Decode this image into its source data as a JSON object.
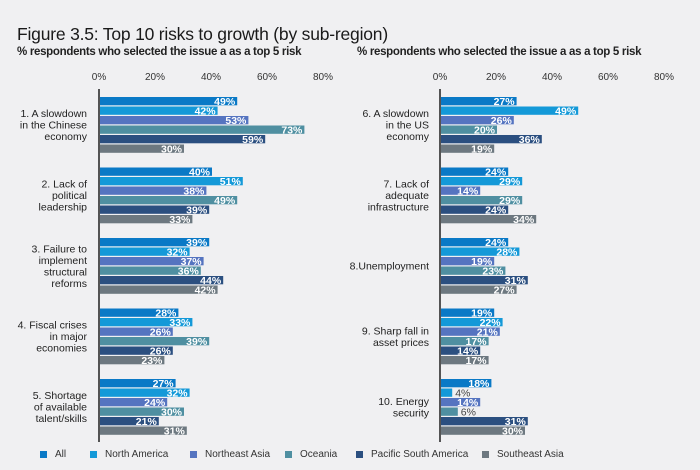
{
  "title": "Figure 3.5: Top 10 risks to growth (by sub-region)",
  "colors": {
    "All": "#0a79c6",
    "North America": "#1499d8",
    "Northeast Asia": "#5574c0",
    "Oceania": "#4f8fa1",
    "Pacific South America": "#2b4f80",
    "Southeast Asia": "#6d7880"
  },
  "chart_data": [
    {
      "type": "bar",
      "orientation": "horizontal",
      "subtitle": "%  respondents who selected the issue a as a top 5 risk",
      "xlim": [
        0,
        80
      ],
      "ticks": [
        "0%",
        "20%",
        "40%",
        "60%",
        "80%"
      ],
      "categories": [
        "1. A slowdown\nin the Chinese\neconomy",
        "2. Lack of\npolitical\nleadership",
        "3. Failure to\nimplement\nstructural\nreforms",
        "4. Fiscal crises\nin major\neconomies",
        "5.  Shortage\nof available\ntalent/skills"
      ],
      "series": [
        {
          "name": "All",
          "values": [
            49,
            40,
            39,
            28,
            27
          ]
        },
        {
          "name": "North America",
          "values": [
            42,
            51,
            32,
            33,
            32
          ]
        },
        {
          "name": "Northeast Asia",
          "values": [
            53,
            38,
            37,
            26,
            24
          ]
        },
        {
          "name": "Oceania",
          "values": [
            73,
            49,
            36,
            39,
            30
          ]
        },
        {
          "name": "Pacific South America",
          "values": [
            59,
            39,
            44,
            26,
            21
          ]
        },
        {
          "name": "Southeast Asia",
          "values": [
            30,
            33,
            42,
            23,
            31
          ]
        }
      ]
    },
    {
      "type": "bar",
      "orientation": "horizontal",
      "subtitle": "%  respondents who selected the issue a as a top 5 risk",
      "xlim": [
        0,
        80
      ],
      "ticks": [
        "0%",
        "20%",
        "40%",
        "60%",
        "80%"
      ],
      "categories": [
        "6. A slowdown\nin the US\neconomy",
        "7. Lack of\nadequate\ninfrastructure",
        "8.Unemployment",
        "9. Sharp fall in\nasset prices",
        "10. Energy\nsecurity"
      ],
      "series": [
        {
          "name": "All",
          "values": [
            27,
            24,
            24,
            19,
            18
          ]
        },
        {
          "name": "North America",
          "values": [
            49,
            29,
            28,
            22,
            4
          ]
        },
        {
          "name": "Northeast Asia",
          "values": [
            26,
            14,
            19,
            21,
            14
          ]
        },
        {
          "name": "Oceania",
          "values": [
            20,
            29,
            23,
            17,
            6
          ]
        },
        {
          "name": "Pacific South America",
          "values": [
            36,
            24,
            31,
            14,
            31
          ]
        },
        {
          "name": "Southeast Asia",
          "values": [
            19,
            34,
            27,
            17,
            30
          ]
        }
      ]
    }
  ],
  "legend": [
    "All",
    "North America",
    "Northeast Asia",
    "Oceania",
    "Pacific South America",
    "Southeast Asia"
  ]
}
